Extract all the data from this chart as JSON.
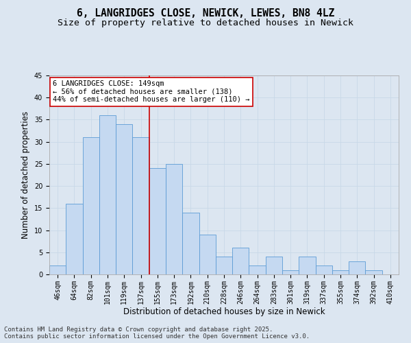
{
  "title": "6, LANGRIDGES CLOSE, NEWICK, LEWES, BN8 4LZ",
  "subtitle": "Size of property relative to detached houses in Newick",
  "xlabel": "Distribution of detached houses by size in Newick",
  "ylabel": "Number of detached properties",
  "categories": [
    "46sqm",
    "64sqm",
    "82sqm",
    "101sqm",
    "119sqm",
    "137sqm",
    "155sqm",
    "173sqm",
    "192sqm",
    "210sqm",
    "228sqm",
    "246sqm",
    "264sqm",
    "283sqm",
    "301sqm",
    "319sqm",
    "337sqm",
    "355sqm",
    "374sqm",
    "392sqm",
    "410sqm"
  ],
  "values": [
    2,
    16,
    31,
    36,
    34,
    31,
    24,
    25,
    14,
    9,
    4,
    6,
    2,
    4,
    1,
    4,
    2,
    1,
    3,
    1,
    0
  ],
  "bar_color": "#c5d9f1",
  "bar_edge_color": "#5b9bd5",
  "grid_color": "#c8d8e8",
  "background_color": "#dce6f1",
  "annotation_text": "6 LANGRIDGES CLOSE: 149sqm\n← 56% of detached houses are smaller (138)\n44% of semi-detached houses are larger (110) →",
  "annotation_box_color": "#ffffff",
  "annotation_box_edge": "#cc0000",
  "vline_x_index": 5,
  "vline_color": "#cc0000",
  "ylim": [
    0,
    45
  ],
  "yticks": [
    0,
    5,
    10,
    15,
    20,
    25,
    30,
    35,
    40,
    45
  ],
  "footer1": "Contains HM Land Registry data © Crown copyright and database right 2025.",
  "footer2": "Contains public sector information licensed under the Open Government Licence v3.0.",
  "title_fontsize": 10.5,
  "subtitle_fontsize": 9.5,
  "axis_label_fontsize": 8.5,
  "tick_fontsize": 7,
  "annotation_fontsize": 7.5,
  "footer_fontsize": 6.5
}
